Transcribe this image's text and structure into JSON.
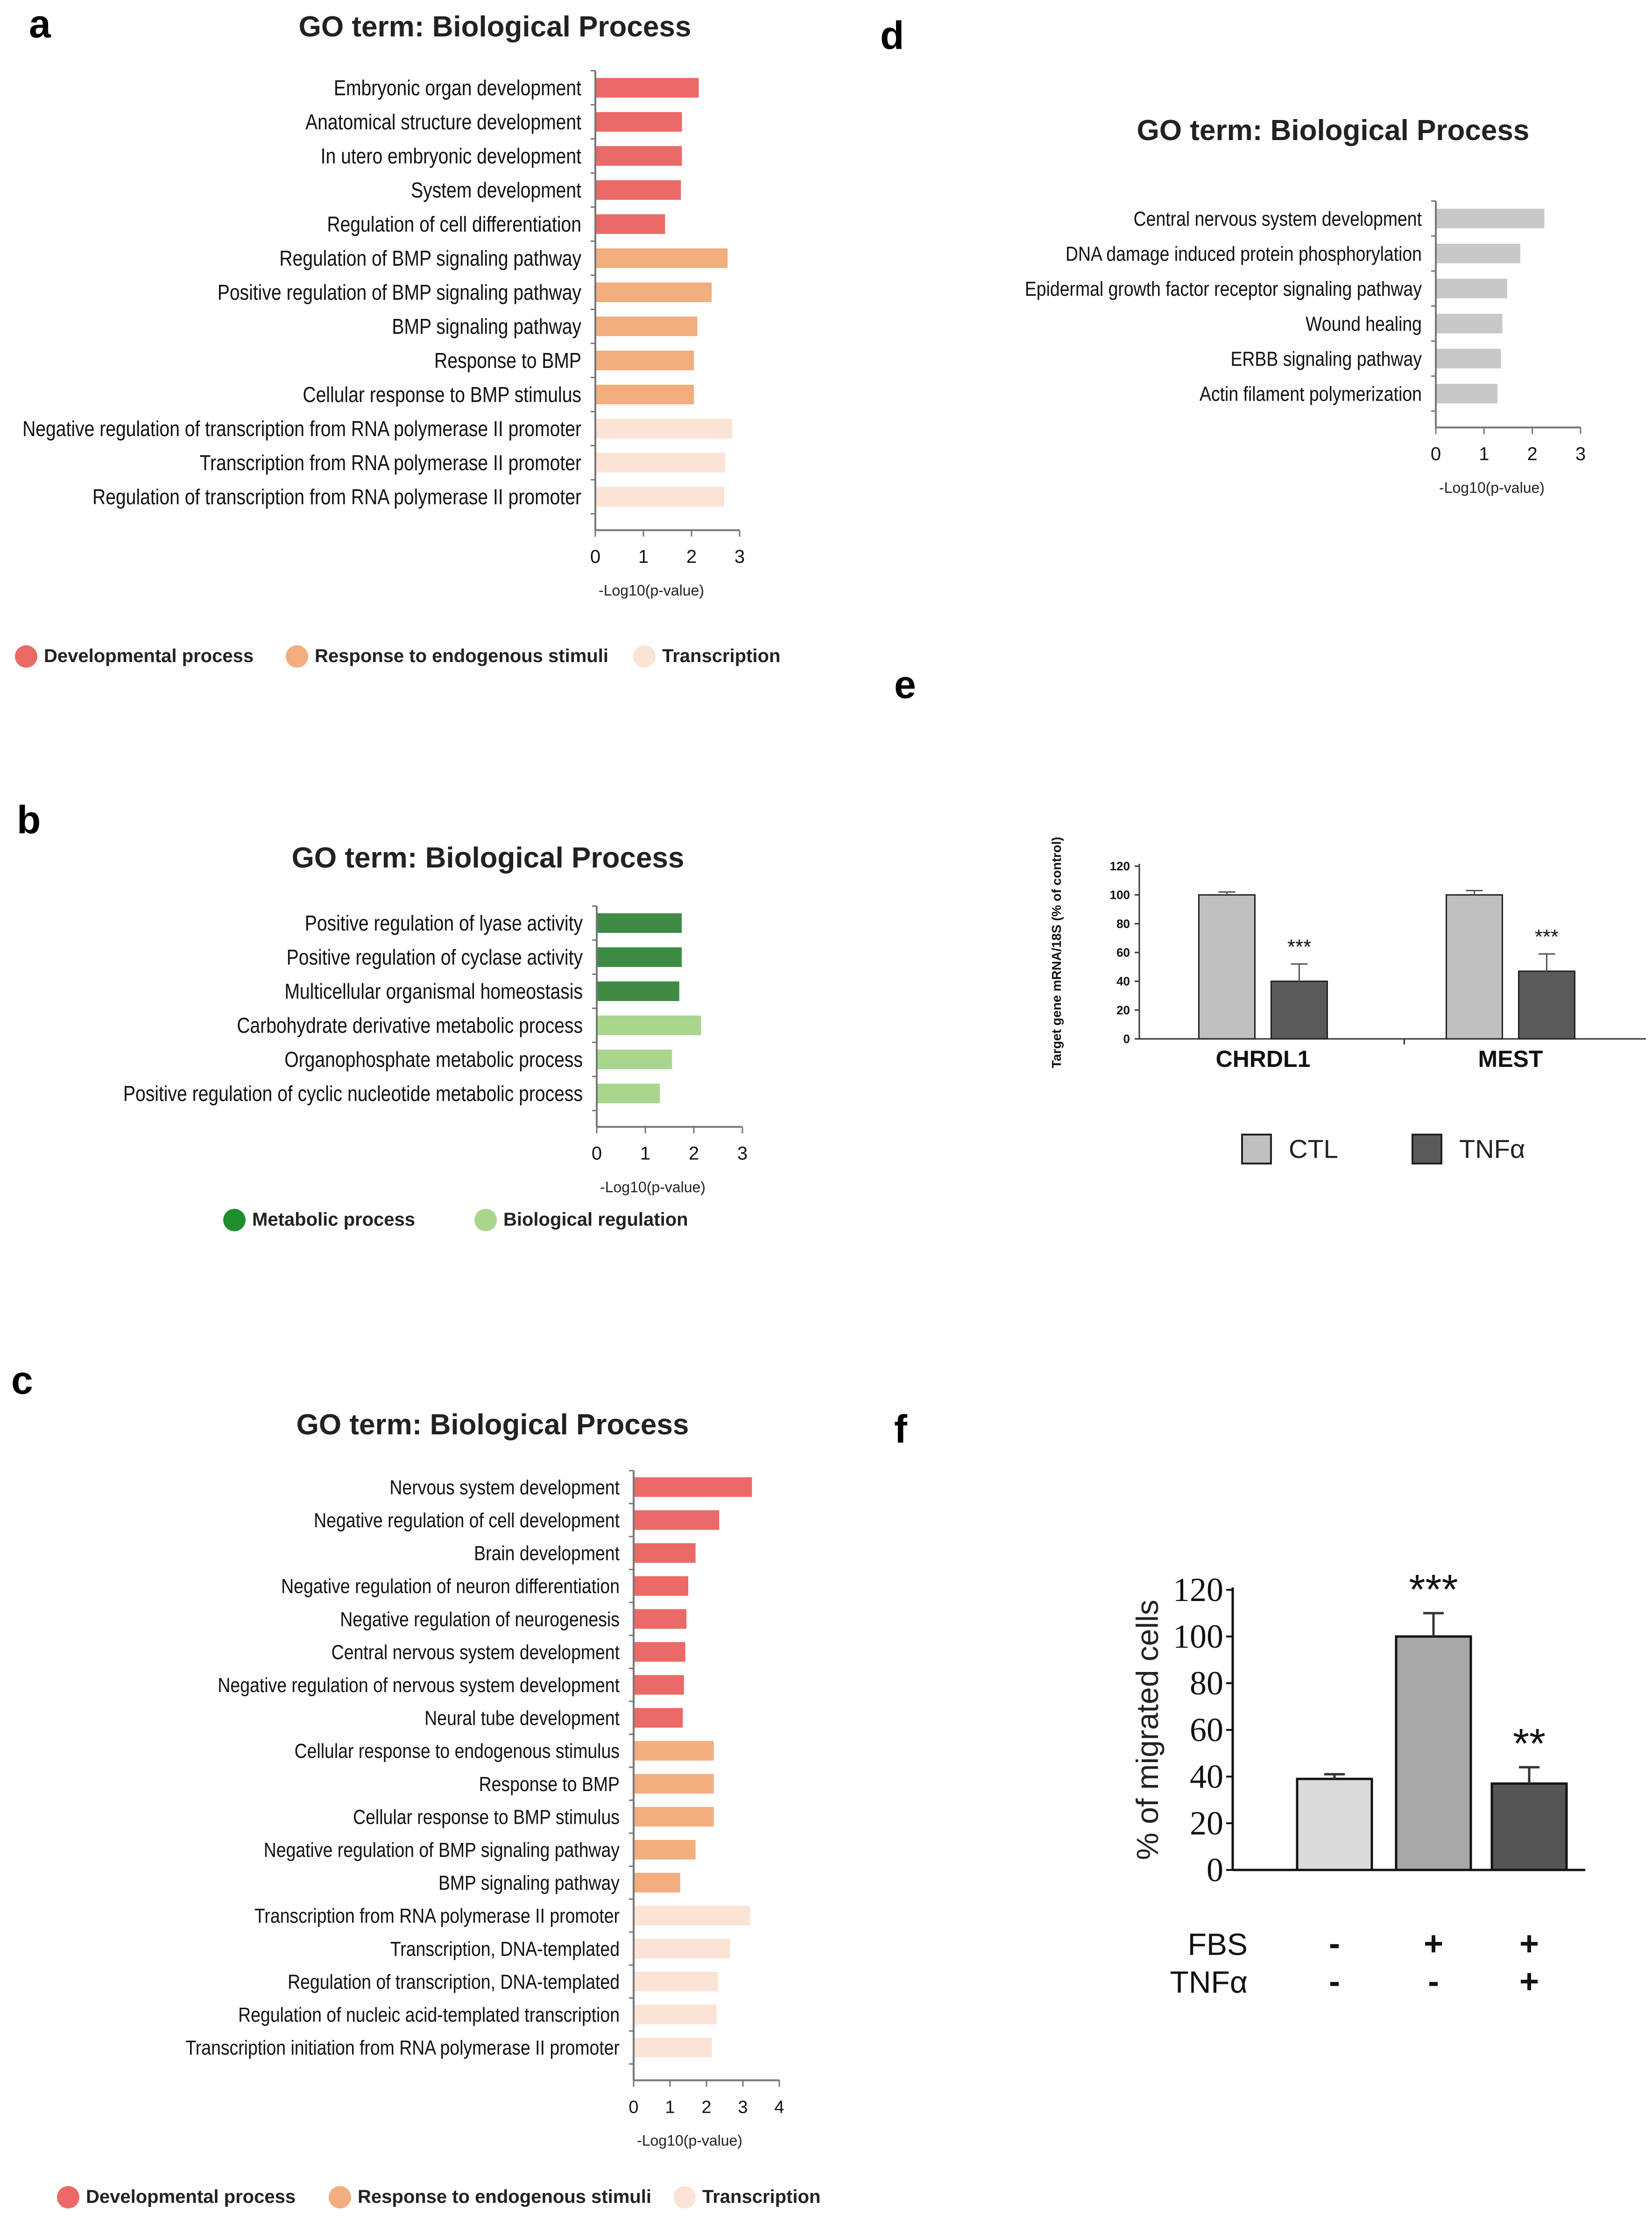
{
  "panels": [
    {
      "label": "a"
    },
    {
      "label": "b"
    },
    {
      "label": "c"
    },
    {
      "label": "d"
    },
    {
      "label": "e"
    },
    {
      "label": "f"
    }
  ],
  "colors": {
    "developmental": "#EB6A67",
    "response": "#F2AE7E",
    "transcription": "#FBE3D6",
    "metabolic_dark": "#3E8C43",
    "biological_light": "#A9D68C",
    "legend_metabolic": "#1E8E2E",
    "legend_biological": "#A9D68C",
    "gray_bar": "#C8C8C8",
    "ctl": "#C0C0C0",
    "tnf": "#5A5A5A",
    "f_light": "#DADADA",
    "f_mid": "#A8A8A8",
    "f_dark": "#555555"
  },
  "chart_data": [
    {
      "id": "a",
      "type": "bar",
      "orientation": "horizontal",
      "title": "GO term: Biological Process",
      "xlabel": "-Log10(p-value)",
      "xlim": [
        0,
        3
      ],
      "xticks": [
        "0",
        "1",
        "2",
        "3"
      ],
      "categories": [
        "Embryonic organ development",
        "Anatomical structure development",
        "In utero embryonic development",
        "System development",
        "Regulation of cell differentiation",
        "Regulation of BMP signaling pathway",
        "Positive regulation of BMP signaling pathway",
        "BMP signaling pathway",
        "Response to BMP",
        "Cellular response to BMP stimulus",
        "Negative regulation of transcription from RNA polymerase II promoter",
        "Transcription from RNA polymerase II promoter",
        "Regulation of transcription from RNA polymerase II promoter"
      ],
      "values": [
        2.15,
        1.8,
        1.8,
        1.78,
        1.45,
        2.75,
        2.42,
        2.12,
        2.05,
        2.05,
        2.85,
        2.7,
        2.68
      ],
      "groups": [
        "developmental",
        "developmental",
        "developmental",
        "developmental",
        "developmental",
        "response",
        "response",
        "response",
        "response",
        "response",
        "transcription",
        "transcription",
        "transcription"
      ],
      "legend": [
        {
          "label": "Developmental process",
          "color_key": "developmental"
        },
        {
          "label": "Response to endogenous stimuli",
          "color_key": "response"
        },
        {
          "label": "Transcription",
          "color_key": "transcription"
        }
      ]
    },
    {
      "id": "b",
      "type": "bar",
      "orientation": "horizontal",
      "title": "GO term: Biological Process",
      "xlabel": "-Log10(p-value)",
      "xlim": [
        0,
        3
      ],
      "xticks": [
        "0",
        "1",
        "2",
        "3"
      ],
      "categories": [
        "Positive regulation of lyase activity",
        "Positive regulation of cyclase activity",
        "Multicellular organismal homeostasis",
        "Carbohydrate derivative metabolic process",
        "Organophosphate metabolic process",
        "Positive regulation of cyclic nucleotide metabolic process"
      ],
      "values": [
        1.75,
        1.75,
        1.7,
        2.15,
        1.55,
        1.3
      ],
      "groups": [
        "metabolic_dark",
        "metabolic_dark",
        "metabolic_dark",
        "biological_light",
        "biological_light",
        "biological_light"
      ],
      "legend": [
        {
          "label": "Metabolic process",
          "color_key": "legend_metabolic"
        },
        {
          "label": "Biological regulation",
          "color_key": "legend_biological"
        }
      ]
    },
    {
      "id": "c",
      "type": "bar",
      "orientation": "horizontal",
      "title": "GO term: Biological Process",
      "xlabel": "-Log10(p-value)",
      "xlim": [
        0,
        4
      ],
      "xticks": [
        "0",
        "1",
        "2",
        "3",
        "4"
      ],
      "categories": [
        "Nervous system development",
        "Negative regulation of cell development",
        "Brain development",
        "Negative regulation of neuron differentiation",
        "Negative regulation of neurogenesis",
        "Central nervous system development",
        "Negative regulation of nervous system development",
        "Neural tube development",
        "Cellular response to endogenous stimulus",
        "Response to BMP",
        "Cellular response to BMP stimulus",
        "Negative regulation of BMP signaling pathway",
        "BMP signaling pathway",
        "Transcription from RNA polymerase II promoter",
        "Transcription, DNA-templated",
        "Regulation of transcription, DNA-templated",
        "Regulation of nucleic acid-templated transcription",
        "Transcription initiation from RNA polymerase II promoter"
      ],
      "values": [
        3.25,
        2.35,
        1.7,
        1.5,
        1.45,
        1.42,
        1.38,
        1.35,
        2.2,
        2.2,
        2.2,
        1.7,
        1.28,
        3.2,
        2.65,
        2.32,
        2.28,
        2.15
      ],
      "groups": [
        "developmental",
        "developmental",
        "developmental",
        "developmental",
        "developmental",
        "developmental",
        "developmental",
        "developmental",
        "response",
        "response",
        "response",
        "response",
        "response",
        "transcription",
        "transcription",
        "transcription",
        "transcription",
        "transcription"
      ],
      "legend": [
        {
          "label": "Developmental process",
          "color_key": "developmental"
        },
        {
          "label": "Response to endogenous stimuli",
          "color_key": "response"
        },
        {
          "label": "Transcription",
          "color_key": "transcription"
        }
      ]
    },
    {
      "id": "d",
      "type": "bar",
      "orientation": "horizontal",
      "title": "GO term: Biological Process",
      "xlabel": "-Log10(p-value)",
      "xlim": [
        0,
        3
      ],
      "xticks": [
        "0",
        "1",
        "2",
        "3"
      ],
      "categories": [
        "Central nervous system development",
        "DNA damage induced protein phosphorylation",
        "Epidermal growth factor receptor signaling pathway",
        "Wound healing",
        "ERBB signaling pathway",
        "Actin filament polymerization"
      ],
      "values": [
        2.25,
        1.75,
        1.48,
        1.38,
        1.35,
        1.28
      ],
      "groups": [
        "gray_bar",
        "gray_bar",
        "gray_bar",
        "gray_bar",
        "gray_bar",
        "gray_bar"
      ]
    },
    {
      "id": "e",
      "type": "bar",
      "ylabel": "Target gene mRNA/18S (% of control)",
      "ylim": [
        0,
        120
      ],
      "yticks": [
        "0",
        "20",
        "40",
        "60",
        "80",
        "100",
        "120"
      ],
      "categories": [
        "CHRDL1",
        "MEST"
      ],
      "series": [
        {
          "name": "CTL",
          "values": [
            100,
            100
          ],
          "errors": [
            2,
            3
          ],
          "color_key": "ctl",
          "annotations": [
            "",
            ""
          ]
        },
        {
          "name": "TNFα",
          "values": [
            40,
            47
          ],
          "errors": [
            12,
            12
          ],
          "color_key": "tnf",
          "annotations": [
            "***",
            "***"
          ]
        }
      ]
    },
    {
      "id": "f",
      "type": "bar",
      "ylabel": "% of migrated cells",
      "ylim": [
        0,
        120
      ],
      "yticks": [
        "0",
        "20",
        "40",
        "60",
        "80",
        "100",
        "120"
      ],
      "values": [
        39,
        100,
        37
      ],
      "errors": [
        2,
        10,
        7
      ],
      "annotations": [
        "",
        "***",
        "**"
      ],
      "color_keys": [
        "f_light",
        "f_mid",
        "f_dark"
      ],
      "conditions": [
        {
          "label": "FBS",
          "marks": [
            "-",
            "+",
            "+"
          ]
        },
        {
          "label": "TNFα",
          "marks": [
            "-",
            "-",
            "+"
          ]
        }
      ]
    }
  ]
}
